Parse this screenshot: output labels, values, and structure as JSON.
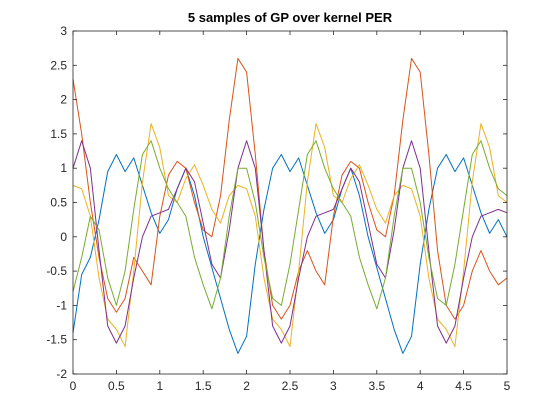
{
  "chart_data": {
    "type": "line",
    "title": "5 samples of GP over kernel PER",
    "xlabel": "",
    "ylabel": "",
    "xlim": [
      0,
      5
    ],
    "ylim": [
      -2,
      3
    ],
    "xticks": [
      0,
      0.5,
      1,
      1.5,
      2,
      2.5,
      3,
      3.5,
      4,
      4.5,
      5
    ],
    "yticks": [
      -2,
      -1.5,
      -1,
      -0.5,
      0,
      0.5,
      1,
      1.5,
      2,
      2.5,
      3
    ],
    "xtick_labels": [
      "0",
      "0.5",
      "1",
      "1.5",
      "2",
      "2.5",
      "3",
      "3.5",
      "4",
      "4.5",
      "5"
    ],
    "ytick_labels": [
      "-2",
      "-1.5",
      "-1",
      "-0.5",
      "0",
      "0.5",
      "1",
      "1.5",
      "2",
      "2.5",
      "3"
    ],
    "grid": false,
    "series": [
      {
        "color": "#0072BD",
        "x": [
          0,
          0.1,
          0.2,
          0.3,
          0.4,
          0.5,
          0.6,
          0.7,
          0.8,
          0.9,
          1.0,
          1.1,
          1.2,
          1.3,
          1.4,
          1.5,
          1.6,
          1.7,
          1.8,
          1.9,
          2.0,
          2.1,
          2.2,
          2.3,
          2.4,
          2.5,
          2.6,
          2.7,
          2.8,
          2.9,
          3.0,
          3.1,
          3.2,
          3.3,
          3.4,
          3.5,
          3.6,
          3.7,
          3.8,
          3.9,
          4.0,
          4.1,
          4.2,
          4.3,
          4.4,
          4.5,
          4.6,
          4.7,
          4.8,
          4.9,
          5.0
        ],
        "y": [
          -1.4,
          -0.55,
          -0.3,
          0.25,
          0.95,
          1.2,
          0.95,
          1.15,
          0.75,
          0.35,
          0.05,
          0.25,
          0.7,
          1.0,
          0.6,
          0.0,
          -0.45,
          -0.9,
          -1.35,
          -1.7,
          -1.45,
          -0.4,
          0.4,
          1.0,
          1.2,
          0.95,
          1.15,
          0.75,
          0.35,
          0.05,
          0.25,
          0.7,
          1.0,
          0.6,
          0.0,
          -0.45,
          -0.9,
          -1.35,
          -1.7,
          -1.45,
          -0.4,
          0.4,
          1.0,
          1.2,
          0.95,
          1.15,
          0.75,
          0.35,
          0.05,
          0.25,
          0.0
        ]
      },
      {
        "color": "#D95319",
        "x": [
          0,
          0.1,
          0.2,
          0.3,
          0.4,
          0.5,
          0.6,
          0.7,
          0.8,
          0.9,
          1.0,
          1.1,
          1.2,
          1.3,
          1.4,
          1.5,
          1.6,
          1.7,
          1.8,
          1.9,
          2.0,
          2.1,
          2.2,
          2.3,
          2.4,
          2.5,
          2.6,
          2.7,
          2.8,
          2.9,
          3.0,
          3.1,
          3.2,
          3.3,
          3.4,
          3.5,
          3.6,
          3.7,
          3.8,
          3.9,
          4.0,
          4.1,
          4.2,
          4.3,
          4.4,
          4.5,
          4.6,
          4.7,
          4.8,
          4.9,
          5.0
        ],
        "y": [
          2.3,
          1.5,
          0.5,
          -0.3,
          -0.9,
          -1.1,
          -0.9,
          -0.3,
          -0.5,
          -0.7,
          0.3,
          0.9,
          1.1,
          1.0,
          0.5,
          0.1,
          0.0,
          0.6,
          1.7,
          2.6,
          2.4,
          1.2,
          -0.2,
          -1.0,
          -1.2,
          -1.0,
          -0.5,
          -0.2,
          -0.5,
          -0.7,
          0.3,
          0.9,
          1.1,
          1.0,
          0.5,
          0.1,
          0.0,
          0.6,
          1.7,
          2.6,
          2.4,
          1.2,
          -0.2,
          -1.0,
          -1.2,
          -1.0,
          -0.5,
          -0.2,
          -0.5,
          -0.7,
          -0.6
        ]
      },
      {
        "color": "#EDB120",
        "x": [
          0,
          0.1,
          0.2,
          0.3,
          0.4,
          0.5,
          0.6,
          0.7,
          0.8,
          0.9,
          1.0,
          1.1,
          1.2,
          1.3,
          1.4,
          1.5,
          1.6,
          1.7,
          1.8,
          1.9,
          2.0,
          2.1,
          2.2,
          2.3,
          2.4,
          2.5,
          2.6,
          2.7,
          2.8,
          2.9,
          3.0,
          3.1,
          3.2,
          3.3,
          3.4,
          3.5,
          3.6,
          3.7,
          3.8,
          3.9,
          4.0,
          4.1,
          4.2,
          4.3,
          4.4,
          4.5,
          4.6,
          4.7,
          4.8,
          4.9,
          5.0
        ],
        "y": [
          0.75,
          0.7,
          0.3,
          -0.6,
          -1.2,
          -1.35,
          -1.6,
          -0.5,
          0.8,
          1.65,
          1.3,
          0.6,
          0.5,
          0.85,
          1.05,
          0.75,
          0.4,
          0.2,
          0.6,
          0.75,
          0.7,
          0.3,
          -0.6,
          -1.2,
          -1.35,
          -1.6,
          -0.5,
          0.8,
          1.65,
          1.3,
          0.6,
          0.5,
          0.85,
          1.05,
          0.75,
          0.4,
          0.2,
          0.6,
          0.75,
          0.7,
          0.3,
          -0.6,
          -1.2,
          -1.35,
          -1.6,
          -0.5,
          0.8,
          1.65,
          1.3,
          0.6,
          0.5
        ]
      },
      {
        "color": "#7E2F8E",
        "x": [
          0,
          0.1,
          0.2,
          0.3,
          0.4,
          0.5,
          0.6,
          0.7,
          0.8,
          0.9,
          1.0,
          1.1,
          1.2,
          1.3,
          1.4,
          1.5,
          1.6,
          1.7,
          1.8,
          1.9,
          2.0,
          2.1,
          2.2,
          2.3,
          2.4,
          2.5,
          2.6,
          2.7,
          2.8,
          2.9,
          3.0,
          3.1,
          3.2,
          3.3,
          3.4,
          3.5,
          3.6,
          3.7,
          3.8,
          3.9,
          4.0,
          4.1,
          4.2,
          4.3,
          4.4,
          4.5,
          4.6,
          4.7,
          4.8,
          4.9,
          5.0
        ],
        "y": [
          1.0,
          1.4,
          1.0,
          -0.2,
          -1.3,
          -1.55,
          -1.3,
          -0.6,
          0.0,
          0.3,
          0.35,
          0.4,
          0.7,
          1.0,
          0.8,
          0.2,
          -0.4,
          -0.6,
          0.1,
          1.0,
          1.4,
          1.0,
          -0.2,
          -1.3,
          -1.55,
          -1.3,
          -0.6,
          0.0,
          0.3,
          0.35,
          0.4,
          0.7,
          1.0,
          0.8,
          0.2,
          -0.4,
          -0.6,
          0.1,
          1.0,
          1.4,
          1.0,
          -0.2,
          -1.3,
          -1.55,
          -1.3,
          -0.6,
          0.0,
          0.3,
          0.35,
          0.4,
          0.35
        ]
      },
      {
        "color": "#77AC30",
        "x": [
          0,
          0.1,
          0.2,
          0.3,
          0.4,
          0.5,
          0.6,
          0.7,
          0.8,
          0.9,
          1.0,
          1.1,
          1.2,
          1.3,
          1.4,
          1.5,
          1.6,
          1.7,
          1.8,
          1.9,
          2.0,
          2.1,
          2.2,
          2.3,
          2.4,
          2.5,
          2.6,
          2.7,
          2.8,
          2.9,
          3.0,
          3.1,
          3.2,
          3.3,
          3.4,
          3.5,
          3.6,
          3.7,
          3.8,
          3.9,
          4.0,
          4.1,
          4.2,
          4.3,
          4.4,
          4.5,
          4.6,
          4.7,
          4.8,
          4.9,
          5.0
        ],
        "y": [
          -0.8,
          -0.3,
          0.3,
          0.1,
          -0.6,
          -1.0,
          -0.5,
          0.4,
          1.2,
          1.4,
          1.0,
          0.7,
          0.5,
          0.3,
          -0.3,
          -0.7,
          -1.05,
          -0.6,
          0.3,
          1.0,
          1.0,
          0.5,
          -0.3,
          -0.9,
          -1.0,
          -0.4,
          0.4,
          1.2,
          1.4,
          1.0,
          0.7,
          0.5,
          0.3,
          -0.3,
          -0.7,
          -1.05,
          -0.6,
          0.3,
          1.0,
          1.0,
          0.5,
          -0.3,
          -0.9,
          -1.0,
          -0.4,
          0.4,
          1.2,
          1.4,
          1.0,
          0.7,
          0.6
        ]
      }
    ]
  }
}
